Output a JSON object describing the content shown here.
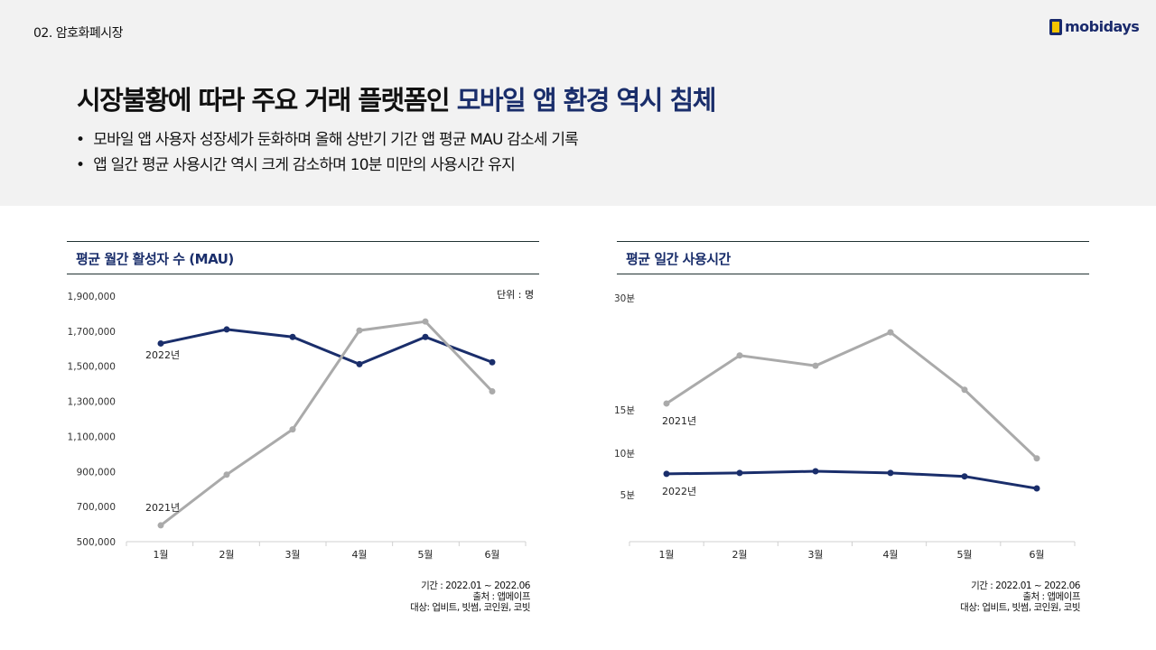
{
  "header": {
    "section": "02. 암호화폐시장",
    "logo_text": "mobidays",
    "title_main": "시장불황에 따라 주요 거래 플랫폼인 ",
    "title_highlight": "모바일 앱 환경 역시 침체",
    "bullets": [
      "모바일 앱 사용자 성장세가 둔화하며 올해 상반기 기간 앱 평균 MAU 감소세 기록",
      "앱 일간 평균 사용시간 역시 크게 감소하며 10분 미만의 사용시간 유지"
    ]
  },
  "colors": {
    "accent": "#1a2e6b",
    "series_2022": "#1a2e6b",
    "series_2021": "#aaaaaa",
    "header_bg": "#f2f2f2"
  },
  "chart_data": [
    {
      "type": "line",
      "title": "평균 월간 활성자 수 (MAU)",
      "unit": "단위 : 명",
      "categories": [
        "1월",
        "2월",
        "3월",
        "4월",
        "5월",
        "6월"
      ],
      "yticks": [
        "500,000",
        "700,000",
        "900,000",
        "1,100,000",
        "1,300,000",
        "1,500,000",
        "1,700,000",
        "1,900,000"
      ],
      "ytick_values": [
        500000,
        700000,
        900000,
        1100000,
        1300000,
        1500000,
        1700000,
        1900000
      ],
      "ylim": [
        500000,
        1900000
      ],
      "grid": false,
      "series": [
        {
          "name": "2022년",
          "values": [
            1630000,
            1710000,
            1667000,
            1512000,
            1667000,
            1523000
          ]
        },
        {
          "name": "2021년",
          "values": [
            593000,
            882000,
            1140000,
            1704000,
            1755000,
            1357000
          ]
        }
      ],
      "notes": [
        "기간 : 2022.01 ~ 2022.06",
        "출처 : 앱메이프",
        "대상: 업비트, 빗썸, 코인원, 코빗"
      ]
    },
    {
      "type": "line",
      "title": "평균 일간 사용시간",
      "categories": [
        "1월",
        "2월",
        "3월",
        "4월",
        "5월",
        "6월"
      ],
      "yticks": [
        "5분",
        "10분",
        "15분",
        "30분"
      ],
      "ytick_values": [
        5,
        10,
        15,
        30
      ],
      "ylim": [
        0,
        30
      ],
      "grid": false,
      "series": [
        {
          "name": "2021년",
          "values": [
            15.9,
            21.5,
            20.3,
            24.2,
            17.5,
            9.5
          ]
        },
        {
          "name": "2022년",
          "values": [
            7.7,
            7.8,
            8.0,
            7.8,
            7.4,
            6.0
          ]
        }
      ],
      "notes": [
        "기간 : 2022.01 ~ 2022.06",
        "출처 : 앱메이프",
        "대상: 업비트, 빗썸, 코인원, 코빗"
      ]
    }
  ]
}
